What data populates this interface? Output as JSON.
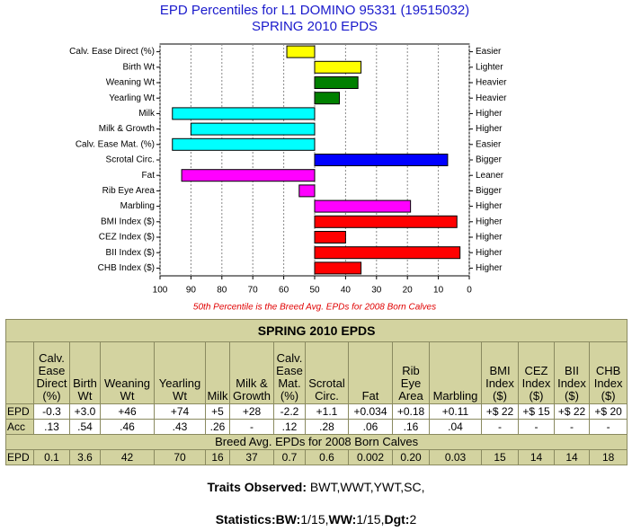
{
  "chart_data": {
    "type": "bar",
    "orientation": "horizontal",
    "title": [
      "EPD Percentiles for L1 DOMINO 95331 (19515032)",
      "SPRING 2010 EPDS"
    ],
    "note": "50th Percentile is the Breed Avg. EPDs for 2008 Born Calves",
    "categories": [
      "Calv. Ease Direct (%)",
      "Birth Wt",
      "Weaning Wt",
      "Yearling Wt",
      "Milk",
      "Milk & Growth",
      "Calv. Ease Mat. (%)",
      "Scrotal Circ.",
      "Fat",
      "Rib Eye Area",
      "Marbling",
      "BMI Index ($)",
      "CEZ Index ($)",
      "BII Index ($)",
      "CHB Index ($)"
    ],
    "values": [
      59,
      35,
      36,
      42,
      96,
      90,
      96,
      7,
      93,
      55,
      19,
      4,
      40,
      3,
      35
    ],
    "colors": [
      "#ffff00",
      "#ffff00",
      "#008000",
      "#008000",
      "#00ffff",
      "#00ffff",
      "#00ffff",
      "#0000ff",
      "#ff00ff",
      "#ff00ff",
      "#ff00ff",
      "#ff0000",
      "#ff0000",
      "#ff0000",
      "#ff0000"
    ],
    "right_labels": [
      "Easier",
      "Lighter",
      "Heavier",
      "Heavier",
      "Higher",
      "Higher",
      "Easier",
      "Bigger",
      "Leaner",
      "Bigger",
      "Higher",
      "Higher",
      "Higher",
      "Higher",
      "Higher"
    ],
    "bar_origin": 50,
    "xlim": [
      100,
      0
    ],
    "xticks": [
      100,
      90,
      80,
      70,
      60,
      50,
      40,
      30,
      20,
      10,
      0
    ],
    "grid": true
  },
  "table": {
    "title": "SPRING 2010 EPDS",
    "headers": [
      "Calv. Ease Direct (%)",
      "Birth Wt",
      "Weaning Wt",
      "Yearling Wt",
      "Milk",
      "Milk & Growth",
      "Calv. Ease Mat. (%)",
      "Scrotal Circ.",
      "Fat",
      "Rib Eye Area",
      "Marbling",
      "BMI Index ($)",
      "CEZ Index ($)",
      "BII Index ($)",
      "CHB Index ($)"
    ],
    "rows": [
      {
        "label": "EPD",
        "cells": [
          "-0.3",
          "+3.0",
          "+46",
          "+74",
          "+5",
          "+28",
          "-2.2",
          "+1.1",
          "+0.034",
          "+0.18",
          "+0.11",
          "+$ 22",
          "+$ 15",
          "+$ 22",
          "+$ 20"
        ]
      },
      {
        "label": "Acc",
        "cells": [
          ".13",
          ".54",
          ".46",
          ".43",
          ".26",
          "-",
          ".12",
          ".28",
          ".06",
          ".16",
          ".04",
          "-",
          "-",
          "-",
          "-"
        ]
      }
    ],
    "breed_avg_caption": "Breed Avg. EPDs for 2008 Born Calves",
    "breed_avg_row": {
      "label": "EPD",
      "cells": [
        "0.1",
        "3.6",
        "42",
        "70",
        "16",
        "37",
        "0.7",
        "0.6",
        "0.002",
        "0.20",
        "0.03",
        "15",
        "14",
        "14",
        "18"
      ]
    }
  },
  "footer": {
    "traits": [
      {
        "text": "Traits Observed:",
        "bold": true
      },
      {
        "text": " BWT,WWT,YWT,SC,",
        "bold": false
      }
    ],
    "statistics": [
      {
        "text": "Statistics:BW:",
        "bold": true
      },
      {
        "text": "1/15,",
        "bold": false
      },
      {
        "text": "WW:",
        "bold": true
      },
      {
        "text": "1/15,",
        "bold": false
      },
      {
        "text": "Dgt:",
        "bold": true
      },
      {
        "text": "2",
        "bold": false
      }
    ]
  }
}
